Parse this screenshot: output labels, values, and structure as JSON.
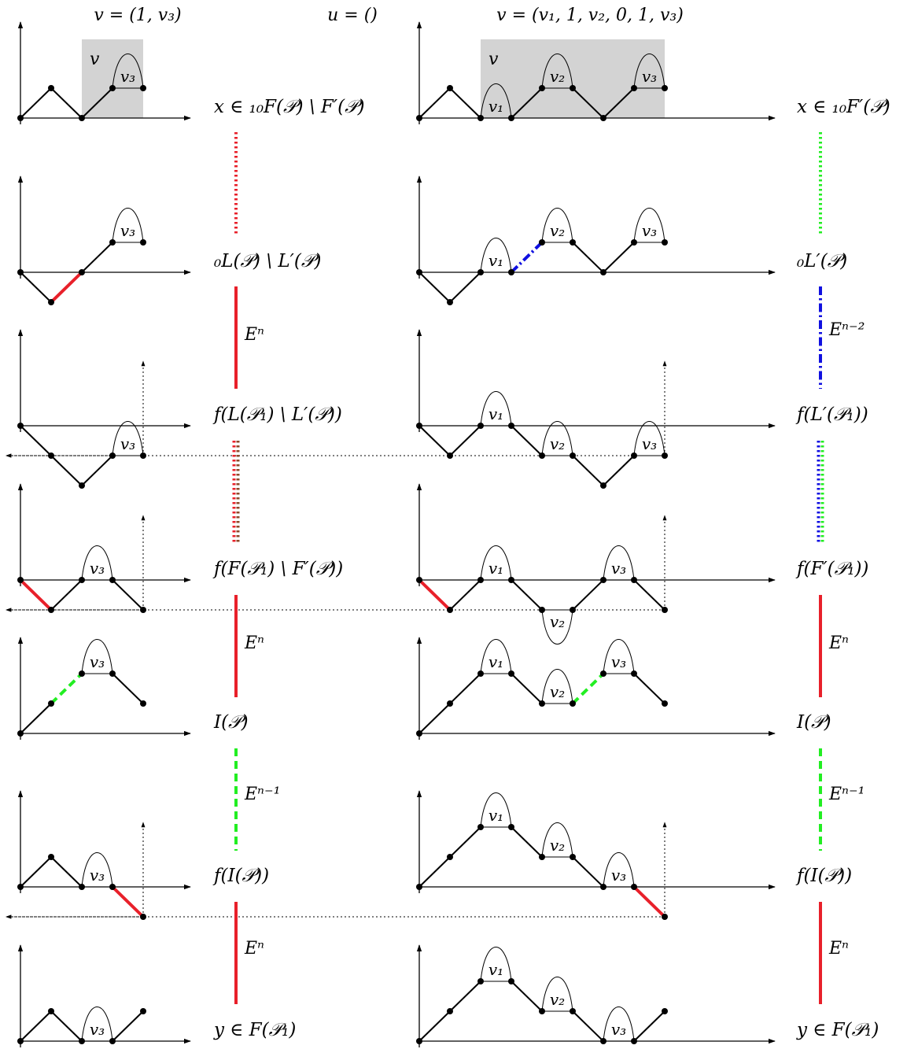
{
  "headers": {
    "left": "v = (1, v₃)",
    "middle": "u = ()",
    "right": "v = (v₁, 1, v₂, 0, 1, v₃)"
  },
  "rows": [
    {
      "left_label": "x ∈ ₁₀F(𝒫) \\ F′(𝒫)",
      "right_label": "x ∈ ₁₀F′(𝒫)"
    },
    {
      "left_label": "₀L(𝒫) \\ L′(𝒫)",
      "right_label": "₀L′(𝒫)"
    },
    {
      "left_label": "f(L(𝒫₁) \\ L′(𝒫))",
      "right_label": "f(L′(𝒫₁))"
    },
    {
      "left_label": "f(F(𝒫₁) \\ F′(𝒫))",
      "right_label": "f(F′(𝒫₁))"
    },
    {
      "left_label": "I(𝒫)",
      "right_label": "I(𝒫)"
    },
    {
      "left_label": "f(I(𝒫))",
      "right_label": "f(I(𝒫))"
    },
    {
      "left_label": "y ∈ F(𝒫₁)",
      "right_label": "y ∈ F(𝒫₁)"
    }
  ],
  "connectors_left": [
    {
      "style": "dotted",
      "colors": [
        "#e8202a"
      ],
      "label": ""
    },
    {
      "style": "solid",
      "colors": [
        "#e8202a"
      ],
      "label": "Eⁿ"
    },
    {
      "style": "dotted",
      "colors": [
        "#e8202a",
        "#8a4a2a"
      ],
      "label": ""
    },
    {
      "style": "solid",
      "colors": [
        "#e8202a"
      ],
      "label": "Eⁿ"
    },
    {
      "style": "dashed",
      "colors": [
        "#22ee22"
      ],
      "label": "Eⁿ⁻¹"
    },
    {
      "style": "solid",
      "colors": [
        "#e8202a"
      ],
      "label": "Eⁿ"
    }
  ],
  "connectors_right": [
    {
      "style": "dotted",
      "colors": [
        "#22ee22"
      ],
      "label": ""
    },
    {
      "style": "dashdot",
      "colors": [
        "#1010e0"
      ],
      "label": "Eⁿ⁻²"
    },
    {
      "style": "dotted",
      "colors": [
        "#1010e0",
        "#22ee22"
      ],
      "label": ""
    },
    {
      "style": "solid",
      "colors": [
        "#e8202a"
      ],
      "label": "Eⁿ"
    },
    {
      "style": "dashed",
      "colors": [
        "#22ee22"
      ],
      "label": "Eⁿ⁻¹"
    },
    {
      "style": "solid",
      "colors": [
        "#e8202a"
      ],
      "label": "Eⁿ"
    }
  ],
  "subword_labels": {
    "v": "v",
    "v1": "v₁",
    "v2": "v₂",
    "v3": "v₃"
  },
  "colors": {
    "red": "#e8202a",
    "green": "#22ee22",
    "blue": "#1010e0",
    "brown": "#8a4a2a",
    "shade": "#d3d3d3"
  },
  "left_paths": [
    {
      "heights": [
        0,
        1,
        0,
        1,
        1
      ],
      "arches": [
        {
          "from": 3,
          "to": 4,
          "label": "v3"
        }
      ],
      "highlight": [],
      "extras": {
        "shade": [
          2,
          4
        ]
      }
    },
    {
      "heights": [
        0,
        -1,
        0,
        1,
        1
      ],
      "arches": [
        {
          "from": 3,
          "to": 4,
          "label": "v3"
        }
      ],
      "highlight": [
        {
          "seg": 1,
          "color": "red",
          "style": "solid"
        }
      ],
      "extras": {}
    },
    {
      "heights": [
        0,
        -1,
        -2,
        -1,
        -1
      ],
      "arches": [
        {
          "from": 3,
          "to": 4,
          "label": "v3"
        }
      ],
      "highlight": [],
      "extras": {
        "guide": -1
      }
    },
    {
      "heights": [
        0,
        -1,
        0,
        0,
        -1
      ],
      "arches": [
        {
          "from": 2,
          "to": 3,
          "label": "v3"
        }
      ],
      "highlight": [
        {
          "seg": 0,
          "color": "red",
          "style": "solid"
        }
      ],
      "extras": {
        "guide": -1
      }
    },
    {
      "heights": [
        0,
        1,
        2,
        2,
        1
      ],
      "arches": [
        {
          "from": 2,
          "to": 3,
          "label": "v3"
        }
      ],
      "highlight": [
        {
          "seg": 1,
          "color": "green",
          "style": "dashed"
        }
      ],
      "extras": {}
    },
    {
      "heights": [
        0,
        1,
        0,
        0,
        -1
      ],
      "arches": [
        {
          "from": 2,
          "to": 3,
          "label": "v3"
        }
      ],
      "highlight": [
        {
          "seg": 3,
          "color": "red",
          "style": "solid"
        }
      ],
      "extras": {
        "guide": -1
      }
    },
    {
      "heights": [
        0,
        1,
        0,
        0,
        1
      ],
      "arches": [
        {
          "from": 2,
          "to": 3,
          "label": "v3"
        }
      ],
      "highlight": [],
      "extras": {}
    }
  ],
  "right_paths": [
    {
      "heights": [
        0,
        1,
        0,
        0,
        1,
        1,
        0,
        1,
        1
      ],
      "arches": [
        {
          "from": 2,
          "to": 3,
          "label": "v1"
        },
        {
          "from": 4,
          "to": 5,
          "label": "v2"
        },
        {
          "from": 7,
          "to": 8,
          "label": "v3"
        }
      ],
      "highlight": [],
      "extras": {
        "shade": [
          2,
          8
        ]
      }
    },
    {
      "heights": [
        0,
        -1,
        0,
        0,
        1,
        1,
        0,
        1,
        1
      ],
      "arches": [
        {
          "from": 2,
          "to": 3,
          "label": "v1"
        },
        {
          "from": 4,
          "to": 5,
          "label": "v2"
        },
        {
          "from": 7,
          "to": 8,
          "label": "v3"
        }
      ],
      "highlight": [
        {
          "seg": 3,
          "color": "blue",
          "style": "dashdot"
        }
      ],
      "extras": {}
    },
    {
      "heights": [
        0,
        -1,
        0,
        0,
        -1,
        -1,
        -2,
        -1,
        -1
      ],
      "arches": [
        {
          "from": 2,
          "to": 3,
          "label": "v1"
        },
        {
          "from": 4,
          "to": 5,
          "label": "v2"
        },
        {
          "from": 7,
          "to": 8,
          "label": "v3"
        }
      ],
      "highlight": [],
      "extras": {
        "guide": -1
      }
    },
    {
      "heights": [
        0,
        -1,
        0,
        0,
        -1,
        -1,
        0,
        0,
        -1
      ],
      "arches": [
        {
          "from": 2,
          "to": 3,
          "label": "v1"
        },
        {
          "from": 4,
          "to": 5,
          "label": "v2",
          "down": true
        },
        {
          "from": 6,
          "to": 7,
          "label": "v3"
        }
      ],
      "highlight": [
        {
          "seg": 0,
          "color": "red",
          "style": "solid"
        }
      ],
      "extras": {
        "guide": -1
      }
    },
    {
      "heights": [
        0,
        1,
        2,
        2,
        1,
        1,
        2,
        2,
        1
      ],
      "arches": [
        {
          "from": 2,
          "to": 3,
          "label": "v1"
        },
        {
          "from": 4,
          "to": 5,
          "label": "v2"
        },
        {
          "from": 6,
          "to": 7,
          "label": "v3"
        }
      ],
      "highlight": [
        {
          "seg": 5,
          "color": "green",
          "style": "dashed"
        }
      ],
      "extras": {}
    },
    {
      "heights": [
        0,
        1,
        2,
        2,
        1,
        1,
        0,
        0,
        -1
      ],
      "arches": [
        {
          "from": 2,
          "to": 3,
          "label": "v1"
        },
        {
          "from": 4,
          "to": 5,
          "label": "v2"
        },
        {
          "from": 6,
          "to": 7,
          "label": "v3"
        }
      ],
      "highlight": [
        {
          "seg": 7,
          "color": "red",
          "style": "solid"
        }
      ],
      "extras": {
        "guide": -1
      }
    },
    {
      "heights": [
        0,
        1,
        2,
        2,
        1,
        1,
        0,
        0,
        1
      ],
      "arches": [
        {
          "from": 2,
          "to": 3,
          "label": "v1"
        },
        {
          "from": 4,
          "to": 5,
          "label": "v2"
        },
        {
          "from": 6,
          "to": 7,
          "label": "v3"
        }
      ],
      "highlight": [],
      "extras": {}
    }
  ]
}
